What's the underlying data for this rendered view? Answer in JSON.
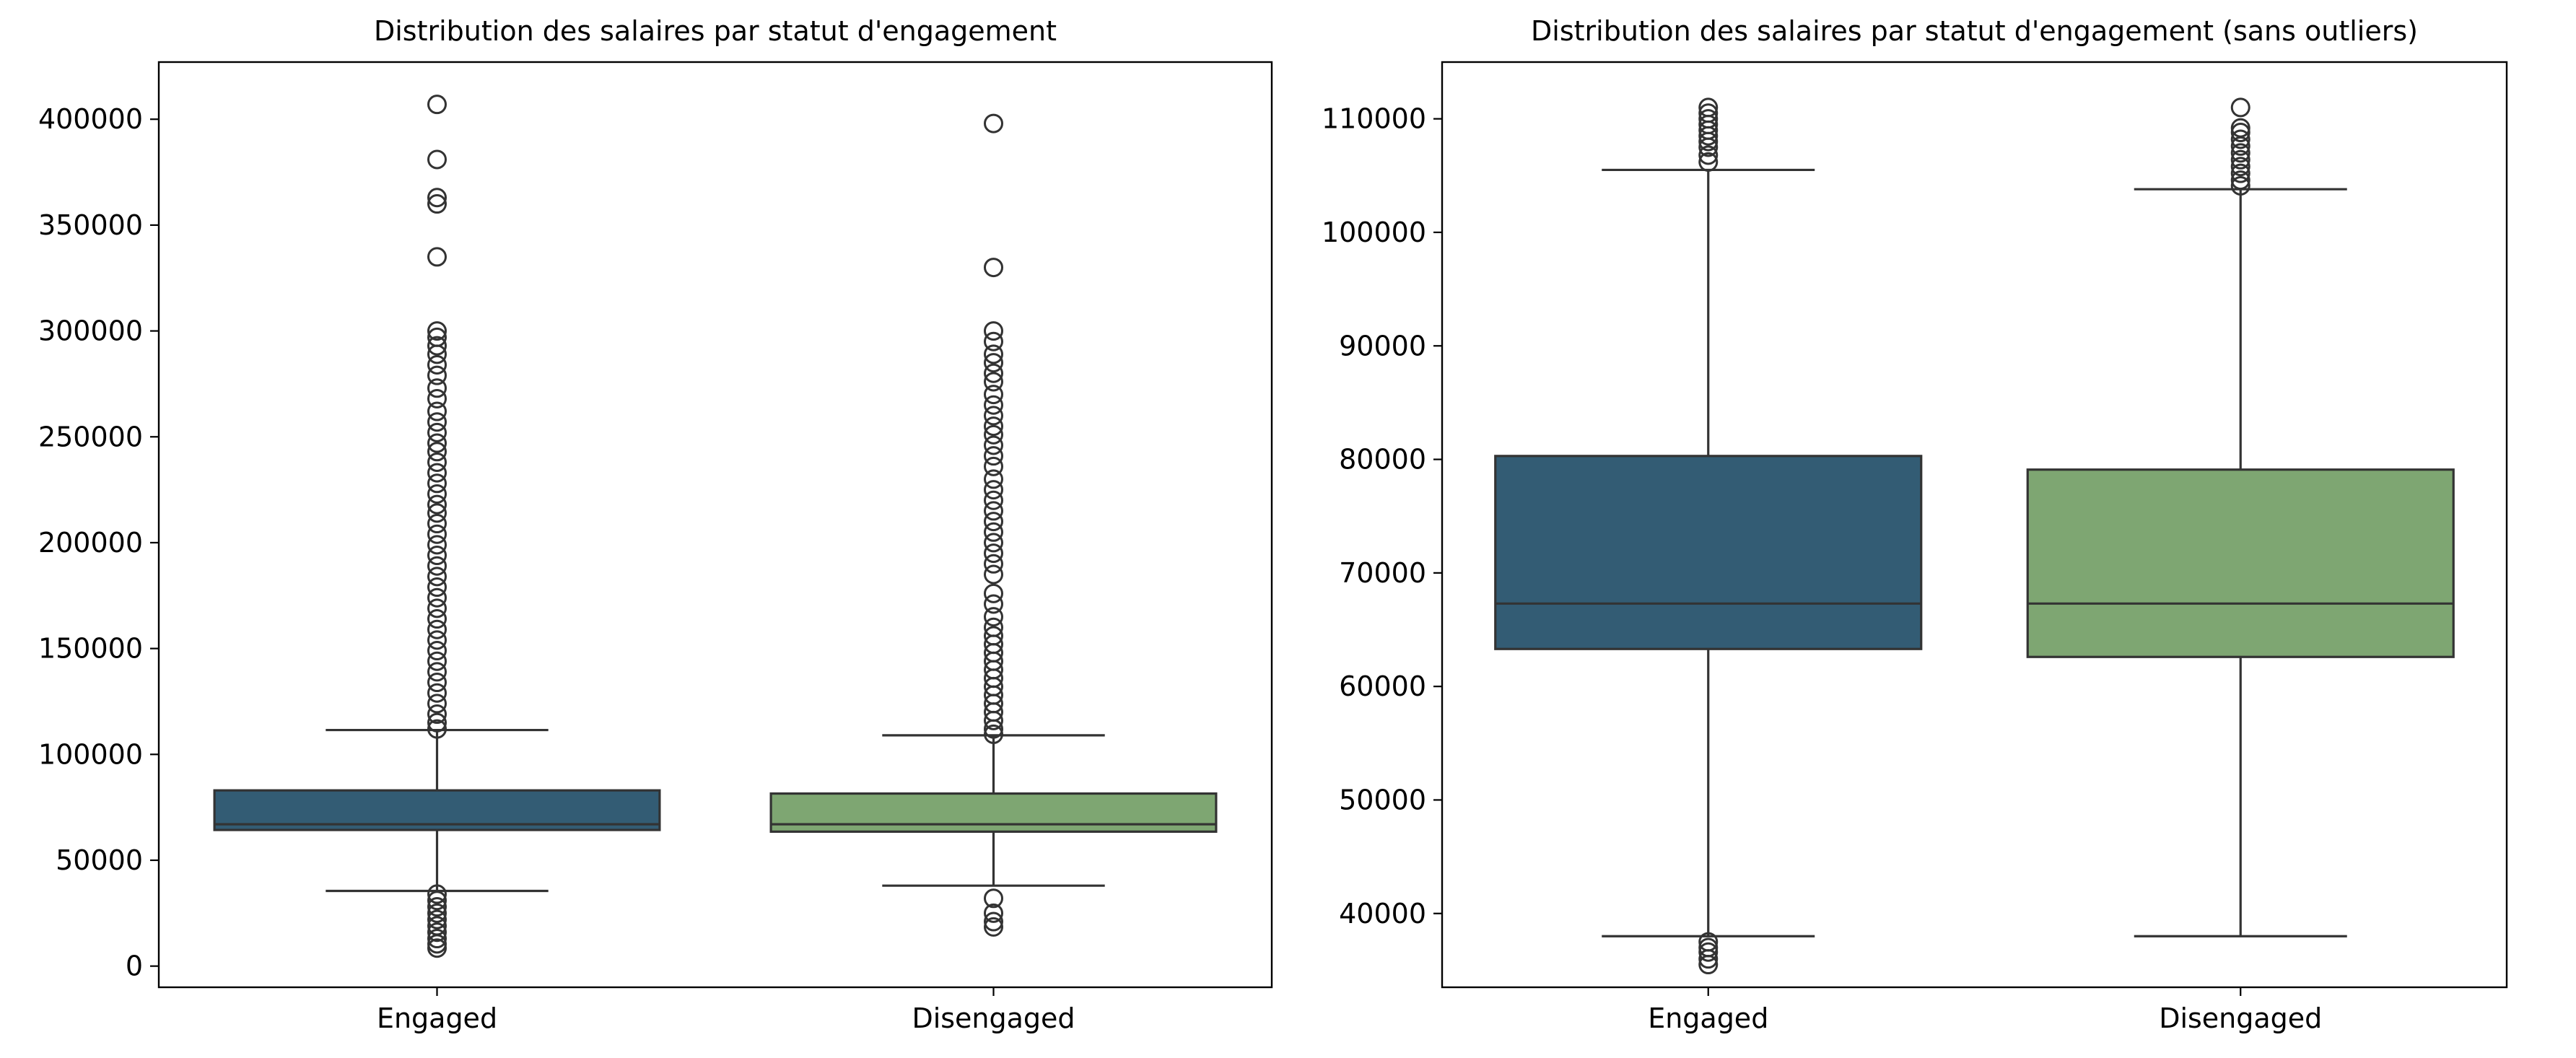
{
  "chart_data": [
    {
      "type": "box",
      "title": "Distribution des salaires par statut d'engagement",
      "xlabel": "",
      "ylabel": "",
      "ylim": [
        -10000,
        427000
      ],
      "yticks": [
        0,
        50000,
        100000,
        150000,
        200000,
        250000,
        300000,
        350000,
        400000
      ],
      "categories": [
        "Engaged",
        "Disengaged"
      ],
      "colors": {
        "Engaged": "#335c74",
        "Disengaged": "#7ea672"
      },
      "boxes": [
        {
          "category": "Engaged",
          "whislo": 35500,
          "q1": 64300,
          "med": 67000,
          "q3": 83000,
          "whishi": 111500,
          "fliers": [
            407000,
            381000,
            363000,
            360000,
            335000,
            300000,
            297000,
            293000,
            289000,
            284000,
            279000,
            273000,
            268000,
            262000,
            257000,
            252000,
            247000,
            243000,
            238000,
            233000,
            228000,
            223000,
            218000,
            214000,
            209000,
            204000,
            199000,
            194000,
            189000,
            184000,
            179000,
            174000,
            169000,
            164000,
            159000,
            154000,
            149000,
            144000,
            139000,
            134000,
            129000,
            124000,
            119000,
            115000,
            112000,
            34000,
            31000,
            28000,
            25000,
            22000,
            19000,
            16000,
            13000,
            10500,
            8500
          ]
        },
        {
          "category": "Disengaged",
          "whislo": 38000,
          "q1": 63500,
          "med": 67000,
          "q3": 81500,
          "whishi": 109000,
          "fliers": [
            398000,
            330000,
            300000,
            295000,
            289000,
            285000,
            280000,
            276000,
            270000,
            265000,
            260000,
            255000,
            251000,
            246000,
            241000,
            236000,
            230000,
            225000,
            220000,
            215000,
            210000,
            205000,
            200000,
            195000,
            190000,
            185000,
            176000,
            171000,
            165000,
            160000,
            156000,
            152000,
            148000,
            144000,
            140000,
            136000,
            132000,
            128000,
            124000,
            120000,
            116000,
            112000,
            109500,
            32000,
            25000,
            21000,
            18500
          ]
        }
      ]
    },
    {
      "type": "box",
      "title": "Distribution des salaires par statut d'engagement (sans outliers)",
      "xlabel": "",
      "ylabel": "",
      "ylim": [
        33500,
        115000
      ],
      "yticks": [
        40000,
        50000,
        60000,
        70000,
        80000,
        90000,
        100000,
        110000
      ],
      "categories": [
        "Engaged",
        "Disengaged"
      ],
      "colors": {
        "Engaged": "#335c74",
        "Disengaged": "#7ea672"
      },
      "boxes": [
        {
          "category": "Engaged",
          "whislo": 38000,
          "q1": 63300,
          "med": 67300,
          "q3": 80300,
          "whishi": 105500,
          "fliers": [
            111000,
            110500,
            110000,
            109500,
            109000,
            108500,
            108000,
            107500,
            106800,
            106200,
            37500,
            37000,
            36600,
            36000,
            35500
          ]
        },
        {
          "category": "Disengaged",
          "whislo": 38000,
          "q1": 62600,
          "med": 67300,
          "q3": 79100,
          "whishi": 103800,
          "fliers": [
            111000,
            109200,
            108800,
            108200,
            107600,
            107000,
            106400,
            105800,
            105200,
            104600,
            104100
          ]
        }
      ]
    }
  ]
}
